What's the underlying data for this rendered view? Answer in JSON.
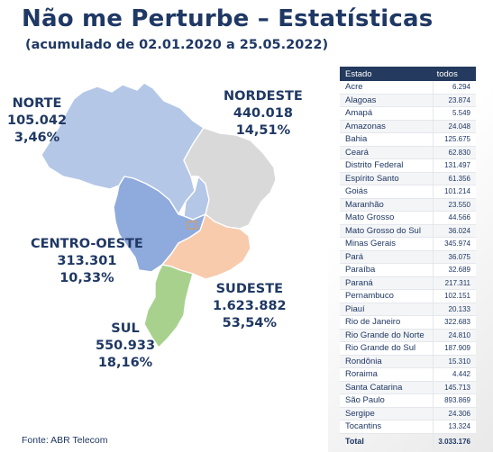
{
  "header": {
    "title": "Não me Perturbe – Estatísticas",
    "subtitle": "(acumulado de 02.01.2020 a 25.05.2022)"
  },
  "regions": {
    "norte": {
      "name": "NORTE",
      "count": "105.042",
      "percent": "3,46%",
      "color": "#b4c7e7"
    },
    "nordeste": {
      "name": "NORDESTE",
      "count": "440.018",
      "percent": "14,51%",
      "color": "#d9d9d9"
    },
    "centro_oeste": {
      "name": "CENTRO-OESTE",
      "count": "313.301",
      "percent": "10,33%",
      "color": "#8faadc"
    },
    "sudeste": {
      "name": "SUDESTE",
      "count": "1.623.882",
      "percent": "53,54%",
      "color": "#f8cbad"
    },
    "sul": {
      "name": "SUL",
      "count": "550.933",
      "percent": "18,16%",
      "color": "#a9d18e"
    }
  },
  "table": {
    "col_state": "Estado",
    "col_total": "todos",
    "rows": [
      {
        "state": "Acre",
        "value": "6.294"
      },
      {
        "state": "Alagoas",
        "value": "23.874"
      },
      {
        "state": "Amapá",
        "value": "5.549"
      },
      {
        "state": "Amazonas",
        "value": "24.048"
      },
      {
        "state": "Bahia",
        "value": "125.675"
      },
      {
        "state": "Ceará",
        "value": "62.830"
      },
      {
        "state": "Distrito Federal",
        "value": "131.497"
      },
      {
        "state": "Espírito Santo",
        "value": "61.356"
      },
      {
        "state": "Goiás",
        "value": "101.214"
      },
      {
        "state": "Maranhão",
        "value": "23.550"
      },
      {
        "state": "Mato Grosso",
        "value": "44.566"
      },
      {
        "state": "Mato Grosso do Sul",
        "value": "36.024"
      },
      {
        "state": "Minas Gerais",
        "value": "345.974"
      },
      {
        "state": "Pará",
        "value": "36.075"
      },
      {
        "state": "Paraíba",
        "value": "32.689"
      },
      {
        "state": "Paraná",
        "value": "217.311"
      },
      {
        "state": "Pernambuco",
        "value": "102.151"
      },
      {
        "state": "Piauí",
        "value": "20.133"
      },
      {
        "state": "Rio de Janeiro",
        "value": "322.683"
      },
      {
        "state": "Rio Grande do Norte",
        "value": "24.810"
      },
      {
        "state": "Rio Grande do Sul",
        "value": "187.909"
      },
      {
        "state": "Rondônia",
        "value": "15.310"
      },
      {
        "state": "Roraima",
        "value": "4.442"
      },
      {
        "state": "Santa Catarina",
        "value": "145.713"
      },
      {
        "state": "São Paulo",
        "value": "893.869"
      },
      {
        "state": "Sergipe",
        "value": "24.306"
      },
      {
        "state": "Tocantins",
        "value": "13.324"
      }
    ],
    "total_label": "Total",
    "total_value": "3.033.176"
  },
  "footer": {
    "source": "Fonte: ABR Telecom"
  }
}
